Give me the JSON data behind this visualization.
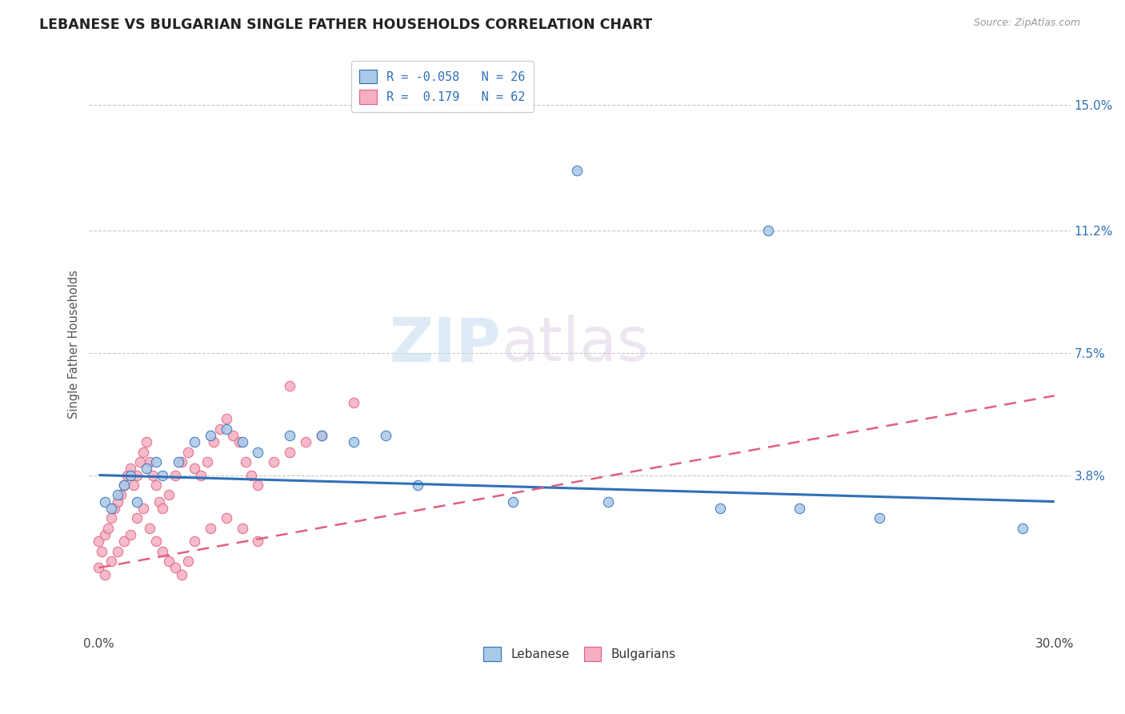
{
  "title": "LEBANESE VS BULGARIAN SINGLE FATHER HOUSEHOLDS CORRELATION CHART",
  "source": "Source: ZipAtlas.com",
  "ylabel": "Single Father Households",
  "xlim": [
    0.0,
    0.3
  ],
  "ylim": [
    -0.01,
    0.165
  ],
  "xtick_labels": [
    "0.0%",
    "30.0%"
  ],
  "ytick_labels": [
    "15.0%",
    "11.2%",
    "7.5%",
    "3.8%"
  ],
  "ytick_vals": [
    0.15,
    0.112,
    0.075,
    0.038
  ],
  "color_lebanese": "#aac8e8",
  "color_bulgarians": "#f5afc0",
  "color_line_lebanese": "#3070b8",
  "color_line_bulgarians": "#e06080",
  "watermark_zip": "ZIP",
  "watermark_atlas": "atlas",
  "lebanese_x": [
    0.002,
    0.004,
    0.006,
    0.008,
    0.01,
    0.012,
    0.015,
    0.018,
    0.02,
    0.025,
    0.03,
    0.035,
    0.04,
    0.045,
    0.05,
    0.06,
    0.07,
    0.08,
    0.09,
    0.1,
    0.13,
    0.16,
    0.195,
    0.22,
    0.245,
    0.29,
    0.15,
    0.21
  ],
  "lebanese_y": [
    0.03,
    0.028,
    0.032,
    0.035,
    0.038,
    0.03,
    0.04,
    0.042,
    0.038,
    0.042,
    0.048,
    0.05,
    0.052,
    0.048,
    0.045,
    0.05,
    0.05,
    0.048,
    0.05,
    0.035,
    0.03,
    0.03,
    0.028,
    0.028,
    0.025,
    0.022,
    0.13,
    0.112
  ],
  "bulgarians_x": [
    0.0,
    0.001,
    0.002,
    0.003,
    0.004,
    0.005,
    0.006,
    0.007,
    0.008,
    0.009,
    0.01,
    0.011,
    0.012,
    0.013,
    0.014,
    0.015,
    0.016,
    0.017,
    0.018,
    0.019,
    0.02,
    0.022,
    0.024,
    0.026,
    0.028,
    0.03,
    0.032,
    0.034,
    0.036,
    0.038,
    0.04,
    0.042,
    0.044,
    0.046,
    0.048,
    0.05,
    0.055,
    0.06,
    0.065,
    0.07,
    0.0,
    0.002,
    0.004,
    0.006,
    0.008,
    0.01,
    0.012,
    0.014,
    0.016,
    0.018,
    0.02,
    0.022,
    0.024,
    0.026,
    0.028,
    0.03,
    0.035,
    0.04,
    0.045,
    0.05,
    0.06,
    0.08
  ],
  "bulgarians_y": [
    0.018,
    0.015,
    0.02,
    0.022,
    0.025,
    0.028,
    0.03,
    0.032,
    0.035,
    0.038,
    0.04,
    0.035,
    0.038,
    0.042,
    0.045,
    0.048,
    0.042,
    0.038,
    0.035,
    0.03,
    0.028,
    0.032,
    0.038,
    0.042,
    0.045,
    0.04,
    0.038,
    0.042,
    0.048,
    0.052,
    0.055,
    0.05,
    0.048,
    0.042,
    0.038,
    0.035,
    0.042,
    0.045,
    0.048,
    0.05,
    0.01,
    0.008,
    0.012,
    0.015,
    0.018,
    0.02,
    0.025,
    0.028,
    0.022,
    0.018,
    0.015,
    0.012,
    0.01,
    0.008,
    0.012,
    0.018,
    0.022,
    0.025,
    0.022,
    0.018,
    0.065,
    0.06
  ],
  "leb_trend_x": [
    0.0,
    0.3
  ],
  "leb_trend_y": [
    0.038,
    0.03
  ],
  "bul_trend_x": [
    0.0,
    0.3
  ],
  "bul_trend_y": [
    0.01,
    0.062
  ]
}
